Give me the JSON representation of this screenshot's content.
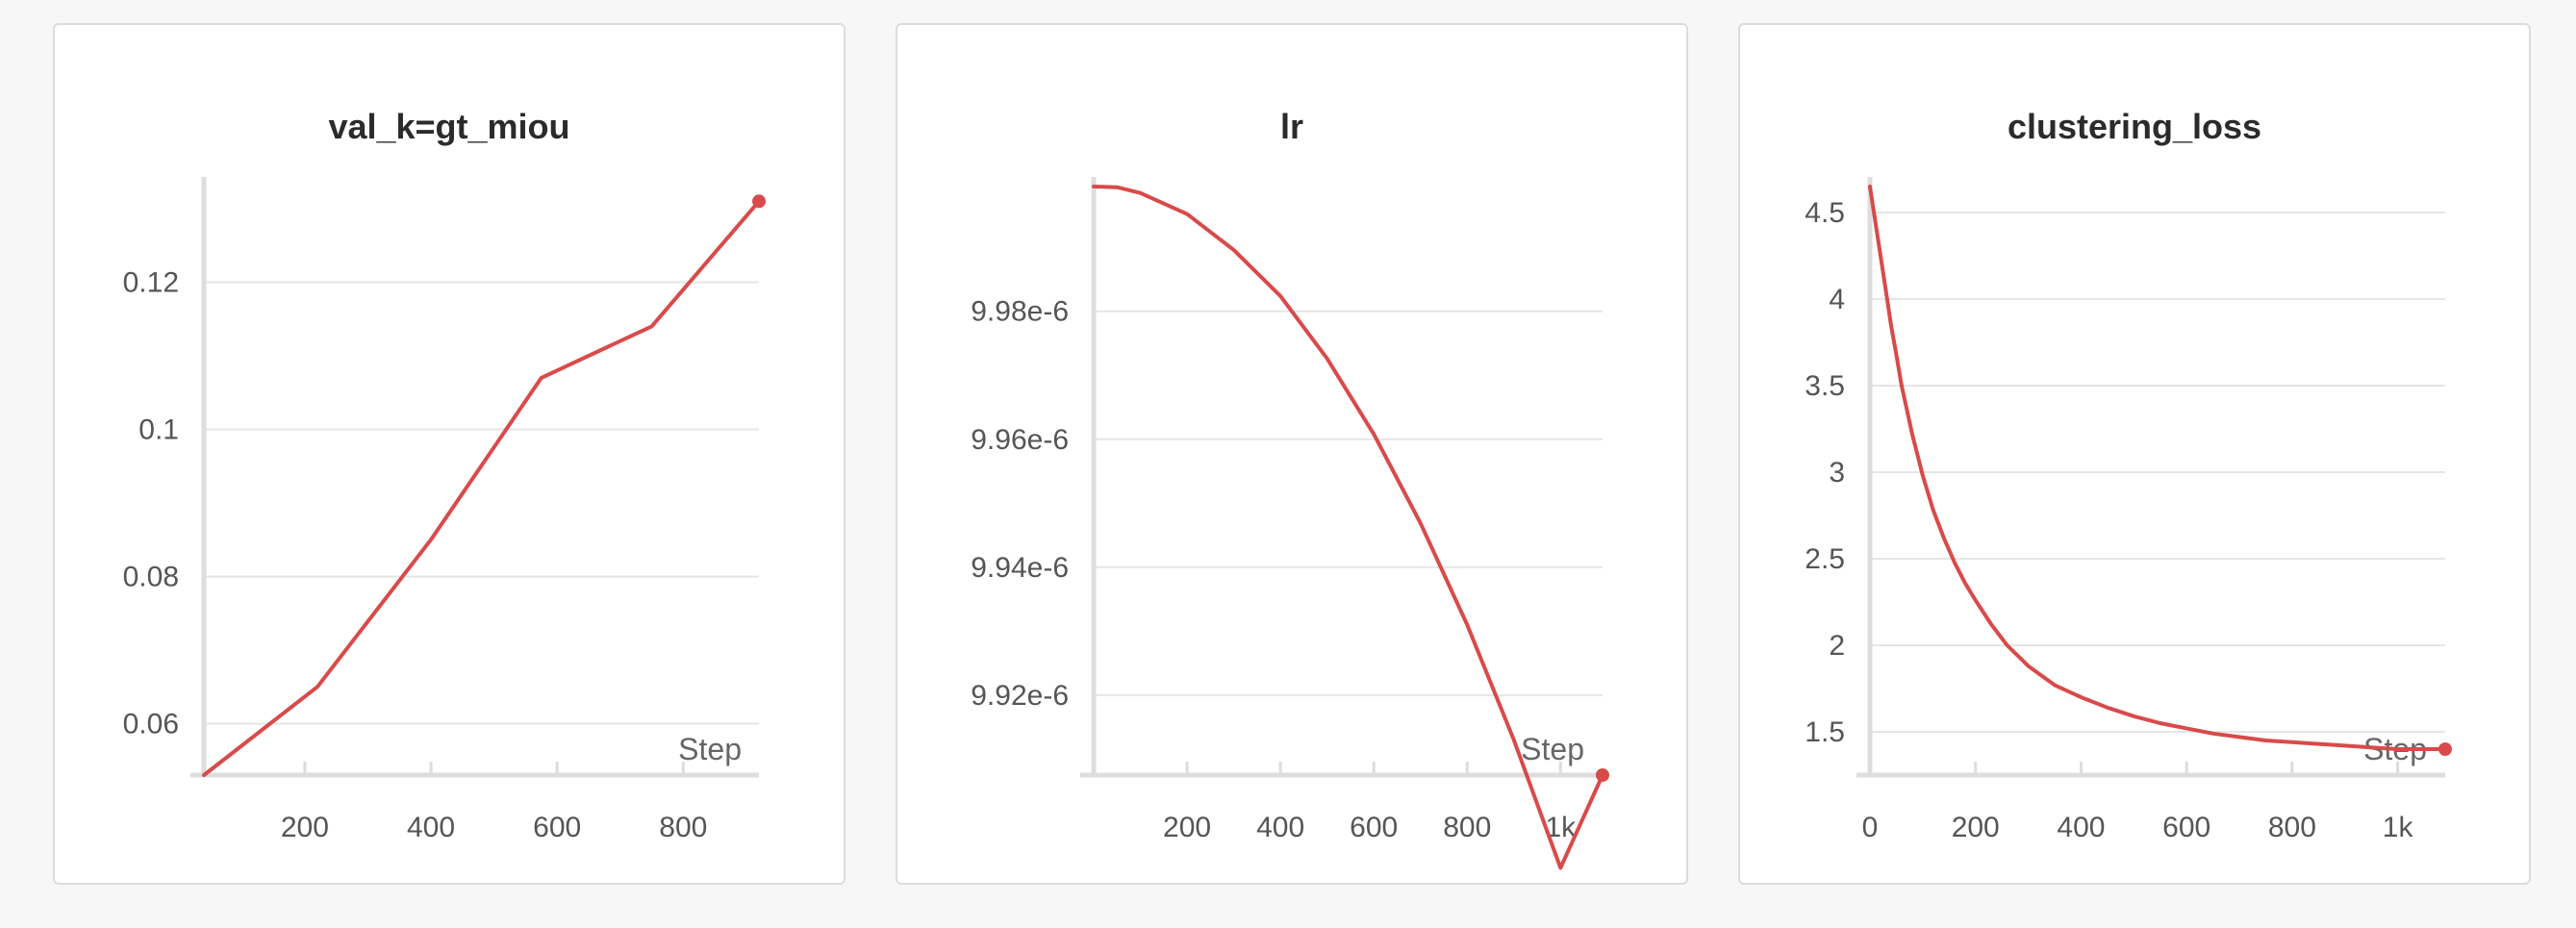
{
  "colors": {
    "series": "#d94a4a"
  },
  "chart_data": [
    {
      "type": "line",
      "title": "val_k=gt_miou",
      "xlabel": "Step",
      "ylabel": "",
      "xlim": [
        40,
        920
      ],
      "ylim": [
        0.053,
        0.133
      ],
      "xticks": [
        200,
        400,
        600,
        800
      ],
      "xtick_labels": [
        "200",
        "400",
        "600",
        "800"
      ],
      "yticks": [
        0.06,
        0.08,
        0.1,
        0.12
      ],
      "ytick_labels": [
        "0.06",
        "0.08",
        "0.1",
        "0.12"
      ],
      "grid": true,
      "series": [
        {
          "x": [
            40,
            220,
            400,
            575,
            750,
            920
          ],
          "y": [
            0.053,
            0.065,
            0.085,
            0.107,
            0.114,
            0.131
          ]
        }
      ]
    },
    {
      "type": "line",
      "title": "lr",
      "xlabel": "Step",
      "ylabel": "",
      "xlim": [
        0,
        1090
      ],
      "ylim": [
        9.9075e-06,
        9.9995e-06
      ],
      "xticks": [
        200,
        400,
        600,
        800,
        1000
      ],
      "xtick_labels": [
        "200",
        "400",
        "600",
        "800",
        "1k"
      ],
      "yticks": [
        9.92e-06,
        9.94e-06,
        9.96e-06,
        9.98e-06
      ],
      "ytick_labels": [
        "9.92e-6",
        "9.94e-6",
        "9.96e-6",
        "9.98e-6"
      ],
      "grid": true,
      "series": [
        {
          "x": [
            0,
            50,
            100,
            200,
            300,
            400,
            500,
            600,
            700,
            800,
            900,
            1000,
            1090
          ],
          "y": [
            9.9995e-06,
            9.9994e-06,
            9.9985e-06,
            9.9952e-06,
            9.9896e-06,
            9.9824e-06,
            9.9726e-06,
            9.9608e-06,
            9.9469e-06,
            9.931e-06,
            9.913e-06,
            9.893e-06,
            9.9075e-06
          ]
        }
      ]
    },
    {
      "type": "line",
      "title": "clustering_loss",
      "xlabel": "Step",
      "ylabel": "",
      "xlim": [
        0,
        1090
      ],
      "ylim": [
        1.25,
        4.65
      ],
      "xticks": [
        0,
        200,
        400,
        600,
        800,
        1000
      ],
      "xtick_labels": [
        "0",
        "200",
        "400",
        "600",
        "800",
        "1k"
      ],
      "yticks": [
        1.5,
        2,
        2.5,
        3,
        3.5,
        4,
        4.5
      ],
      "ytick_labels": [
        "1.5",
        "2",
        "2.5",
        "3",
        "3.5",
        "4",
        "4.5"
      ],
      "grid": true,
      "series": [
        {
          "x": [
            0,
            10,
            20,
            30,
            40,
            50,
            60,
            70,
            80,
            90,
            100,
            120,
            140,
            160,
            180,
            200,
            230,
            260,
            300,
            350,
            400,
            450,
            500,
            550,
            600,
            650,
            700,
            750,
            800,
            850,
            900,
            950,
            1000,
            1050,
            1090
          ],
          "y": [
            4.65,
            4.45,
            4.25,
            4.05,
            3.85,
            3.68,
            3.5,
            3.36,
            3.22,
            3.1,
            2.98,
            2.78,
            2.62,
            2.48,
            2.36,
            2.26,
            2.12,
            2.0,
            1.88,
            1.77,
            1.7,
            1.64,
            1.59,
            1.55,
            1.52,
            1.49,
            1.47,
            1.45,
            1.44,
            1.43,
            1.42,
            1.41,
            1.4,
            1.4,
            1.4
          ]
        }
      ]
    }
  ]
}
